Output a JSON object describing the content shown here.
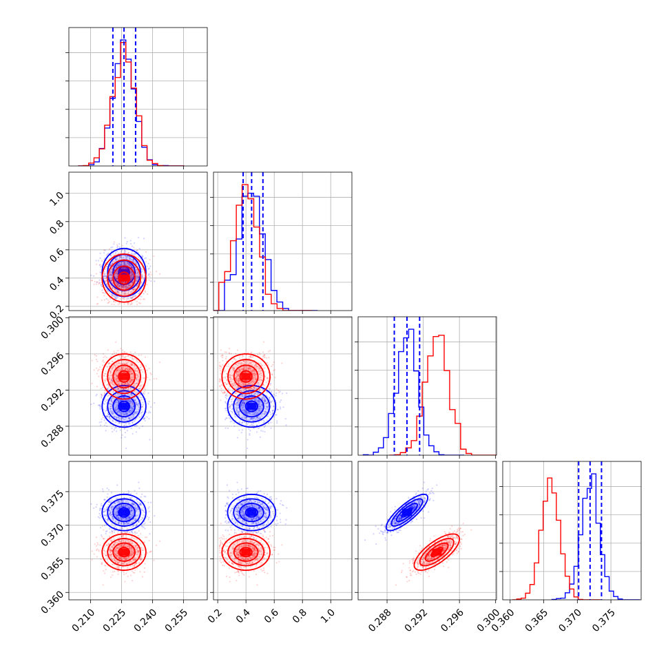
{
  "chart_data": {
    "type": "corner",
    "parameters": [
      {
        "ticks": [
          "0.210",
          "0.225",
          "0.240",
          "0.255"
        ],
        "range": [
          0.1995,
          0.2665
        ]
      },
      {
        "ticks": [
          "0.2",
          "0.4",
          "0.6",
          "0.8",
          "1.0"
        ],
        "range": [
          0.17,
          1.15
        ]
      },
      {
        "ticks": [
          "0.288",
          "0.292",
          "0.296",
          "0.300"
        ],
        "range": [
          0.2848,
          0.3001
        ]
      },
      {
        "ticks": [
          "0.360",
          "0.365",
          "0.370",
          "0.375"
        ],
        "range": [
          0.3589,
          0.3795
        ]
      }
    ],
    "series": [
      {
        "color": "#0000ff",
        "means": [
          0.2262,
          0.44,
          0.2902,
          0.3719
        ],
        "sds": [
          0.0053,
          0.085,
          0.00115,
          0.00135
        ],
        "corr_23": 0.82,
        "quantiles": [
          [
            0.2208,
            0.2262,
            0.2318
          ],
          [
            0.38,
            0.44,
            0.52
          ],
          [
            0.2888,
            0.2902,
            0.2916
          ],
          [
            0.3702,
            0.3719,
            0.3736
          ]
        ]
      },
      {
        "color": "#ff0000",
        "means": [
          0.2262,
          0.4,
          0.2935,
          0.366
        ],
        "sds": [
          0.0053,
          0.085,
          0.00125,
          0.00135
        ],
        "corr_23": 0.72
      }
    ]
  }
}
